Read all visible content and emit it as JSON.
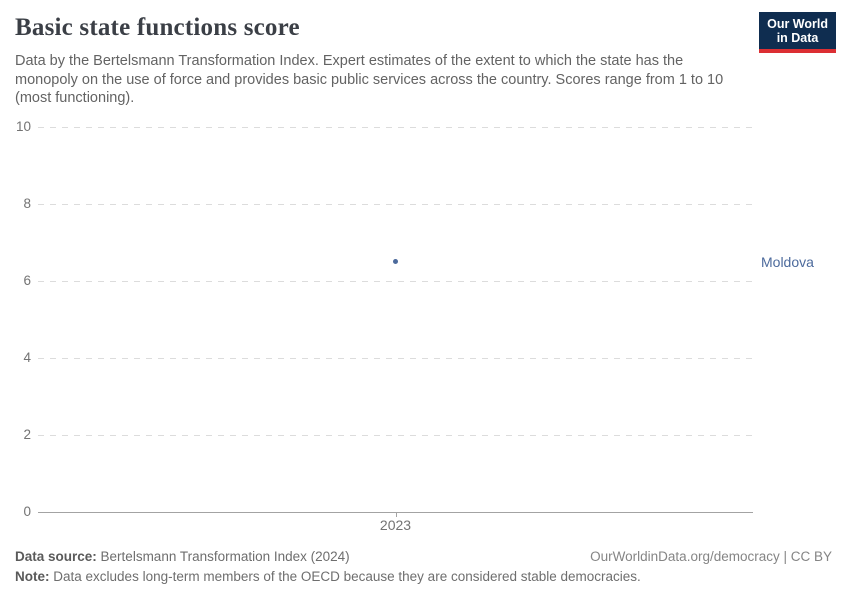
{
  "header": {
    "title": "Basic state functions score",
    "subtitle": "Data by the Bertelsmann Transformation Index. Expert estimates of the extent to which the state has the monopoly on the use of force and provides basic public services across the country. Scores range from 1 to 10 (most functioning).",
    "logo": {
      "line1": "Our World",
      "line2": "in Data"
    }
  },
  "chart_data": {
    "type": "scatter",
    "title": "Basic state functions score",
    "series": [
      {
        "name": "Moldova",
        "x": [
          2023
        ],
        "values": [
          6.5
        ],
        "color": "#4c6a9c"
      }
    ],
    "xlabel": "",
    "ylabel": "",
    "ylim": [
      0,
      10
    ],
    "yticks": [
      10,
      8,
      6,
      4,
      2,
      0
    ],
    "xticks": [
      2023
    ],
    "grid": true,
    "gridline_style": "dashed",
    "legend_position": "right-of-point-label"
  },
  "footer": {
    "data_source_label": "Data source:",
    "data_source_value": "Bertelsmann Transformation Index (2024)",
    "attribution": "OurWorldinData.org/democracy | CC BY",
    "note_label": "Note:",
    "note_value": "Data excludes long-term members of the OECD because they are considered stable democracies."
  },
  "colors": {
    "owid_navy": "#0f2d50",
    "owid_red": "#dc2f33",
    "series_moldova": "#4c6a9c",
    "gridline": "#dcdcdc",
    "axis_line": "#a3a3a3",
    "tick_label": "#737373"
  }
}
